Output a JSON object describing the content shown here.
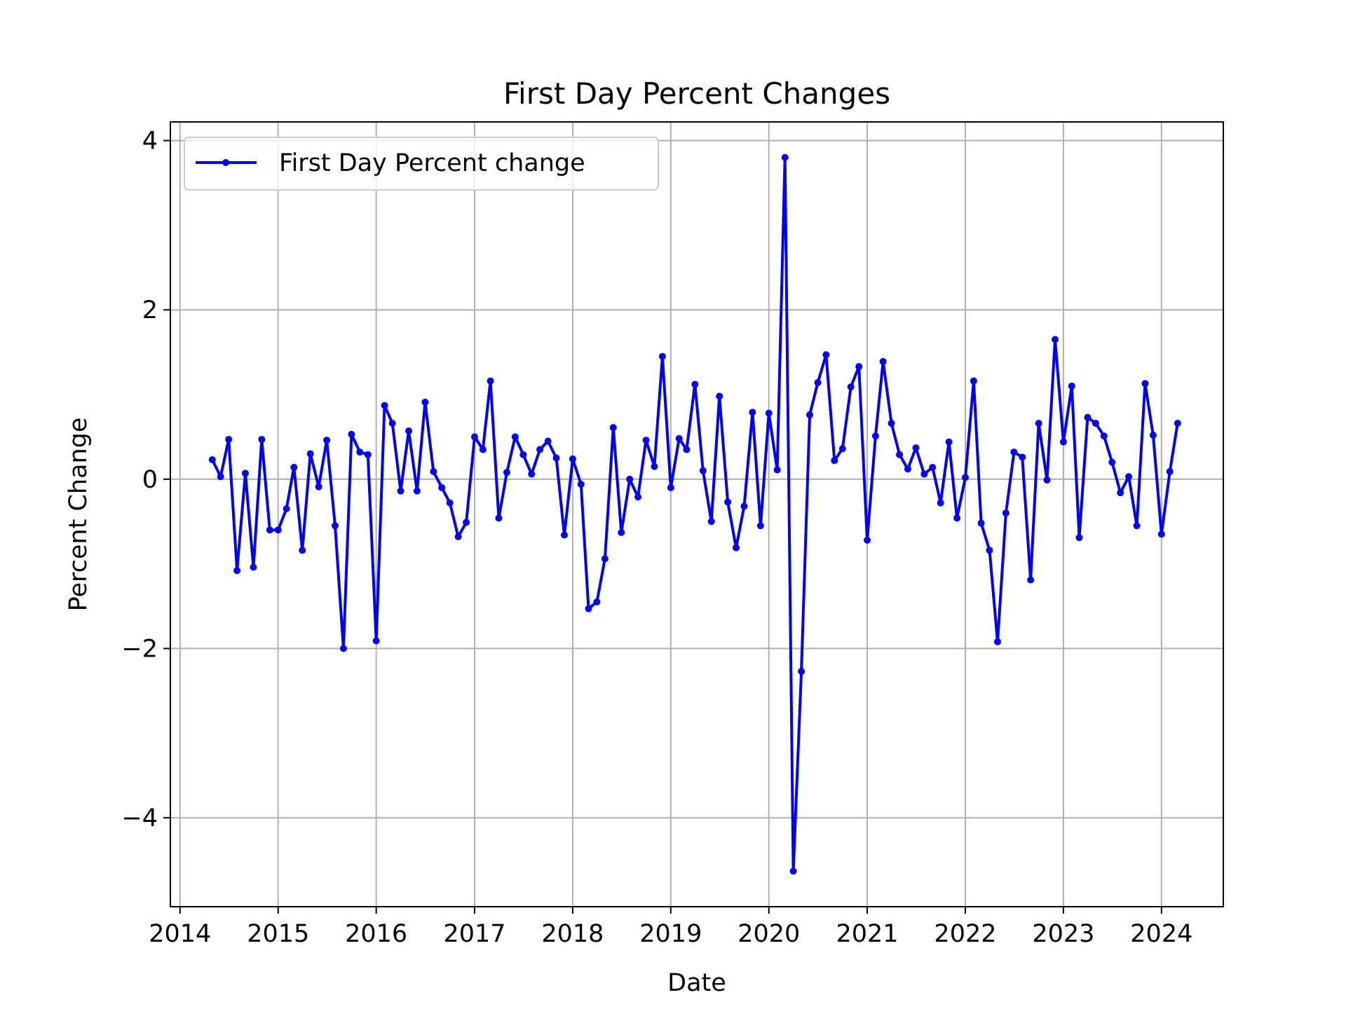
{
  "chart_data": {
    "type": "line",
    "title": "First Day Percent Changes",
    "xlabel": "Date",
    "ylabel": "Percent Change",
    "x_ticks": [
      "2014",
      "2015",
      "2016",
      "2017",
      "2018",
      "2019",
      "2020",
      "2021",
      "2022",
      "2023",
      "2024"
    ],
    "y_ticks": [
      {
        "value": -4,
        "label": "−4"
      },
      {
        "value": -2,
        "label": "−2"
      },
      {
        "value": 0,
        "label": "0"
      },
      {
        "value": 2,
        "label": "2"
      },
      {
        "value": 4,
        "label": "4"
      }
    ],
    "xlim": [
      "2013-11-26",
      "2024-08-18"
    ],
    "ylim": [
      -5.05,
      4.22
    ],
    "grid": true,
    "legend": "top-left",
    "series": [
      {
        "name": "First Day Percent change",
        "color": "#0000ff",
        "marker": "dot",
        "dates": [
          "2014-05-01",
          "2014-06-01",
          "2014-07-01",
          "2014-08-01",
          "2014-09-01",
          "2014-10-01",
          "2014-11-01",
          "2014-12-01",
          "2015-01-01",
          "2015-02-01",
          "2015-03-01",
          "2015-04-01",
          "2015-05-01",
          "2015-06-01",
          "2015-07-01",
          "2015-08-01",
          "2015-09-01",
          "2015-10-01",
          "2015-11-01",
          "2015-12-01",
          "2016-01-01",
          "2016-02-01",
          "2016-03-01",
          "2016-04-01",
          "2016-05-01",
          "2016-06-01",
          "2016-07-01",
          "2016-08-01",
          "2016-09-01",
          "2016-10-01",
          "2016-11-01",
          "2016-12-01",
          "2017-01-01",
          "2017-02-01",
          "2017-03-01",
          "2017-04-01",
          "2017-05-01",
          "2017-06-01",
          "2017-07-01",
          "2017-08-01",
          "2017-09-01",
          "2017-10-01",
          "2017-11-01",
          "2017-12-01",
          "2018-01-01",
          "2018-02-01",
          "2018-03-01",
          "2018-04-01",
          "2018-05-01",
          "2018-06-01",
          "2018-07-01",
          "2018-08-01",
          "2018-09-01",
          "2018-10-01",
          "2018-11-01",
          "2018-12-01",
          "2019-01-01",
          "2019-02-01",
          "2019-03-01",
          "2019-04-01",
          "2019-05-01",
          "2019-06-01",
          "2019-07-01",
          "2019-08-01",
          "2019-09-01",
          "2019-10-01",
          "2019-11-01",
          "2019-12-01",
          "2020-01-01",
          "2020-02-01",
          "2020-03-01",
          "2020-04-01",
          "2020-05-01",
          "2020-06-01",
          "2020-07-01",
          "2020-08-01",
          "2020-09-01",
          "2020-10-01",
          "2020-11-01",
          "2020-12-01",
          "2021-01-01",
          "2021-02-01",
          "2021-03-01",
          "2021-04-01",
          "2021-05-01",
          "2021-06-01",
          "2021-07-01",
          "2021-08-01",
          "2021-09-01",
          "2021-10-01",
          "2021-11-01",
          "2021-12-01",
          "2022-01-01",
          "2022-02-01",
          "2022-03-01",
          "2022-04-01",
          "2022-05-01",
          "2022-06-01",
          "2022-07-01",
          "2022-08-01",
          "2022-09-01",
          "2022-10-01",
          "2022-11-01",
          "2022-12-01",
          "2023-01-01",
          "2023-02-01",
          "2023-03-01",
          "2023-04-01",
          "2023-05-01",
          "2023-06-01",
          "2023-07-01",
          "2023-08-01",
          "2023-09-01",
          "2023-10-01",
          "2023-11-01",
          "2023-12-01",
          "2024-01-01",
          "2024-02-01",
          "2024-03-01"
        ],
        "values": [
          0.23,
          0.03,
          0.47,
          -1.08,
          0.07,
          -1.04,
          0.47,
          -0.6,
          -0.6,
          -0.35,
          0.14,
          -0.84,
          0.3,
          -0.09,
          0.46,
          -0.55,
          -2.0,
          0.53,
          0.32,
          0.29,
          -1.91,
          0.87,
          0.66,
          -0.14,
          0.57,
          -0.14,
          0.91,
          0.09,
          -0.1,
          -0.28,
          -0.68,
          -0.51,
          0.5,
          0.35,
          1.16,
          -0.46,
          0.08,
          0.5,
          0.29,
          0.06,
          0.35,
          0.45,
          0.25,
          -0.66,
          0.24,
          -0.06,
          -1.53,
          -1.45,
          -0.94,
          0.61,
          -0.63,
          0.0,
          -0.21,
          0.46,
          0.15,
          1.45,
          -0.1,
          0.48,
          0.35,
          1.12,
          0.1,
          -0.5,
          0.98,
          -0.27,
          -0.81,
          -0.32,
          0.79,
          -0.55,
          0.78,
          0.11,
          3.8,
          -4.63,
          -2.27,
          0.76,
          1.14,
          1.47,
          0.22,
          0.36,
          1.09,
          1.33,
          -0.72,
          0.51,
          1.39,
          0.66,
          0.29,
          0.12,
          0.37,
          0.06,
          0.14,
          -0.28,
          0.44,
          -0.46,
          0.02,
          1.16,
          -0.52,
          -0.84,
          -1.92,
          -0.4,
          0.32,
          0.26,
          -1.19,
          0.66,
          -0.01,
          1.65,
          0.44,
          1.1,
          -0.69,
          0.73,
          0.66,
          0.51,
          0.2,
          -0.16,
          0.03,
          -0.55,
          1.13,
          0.52,
          -0.65,
          0.09,
          0.66
        ]
      }
    ]
  }
}
